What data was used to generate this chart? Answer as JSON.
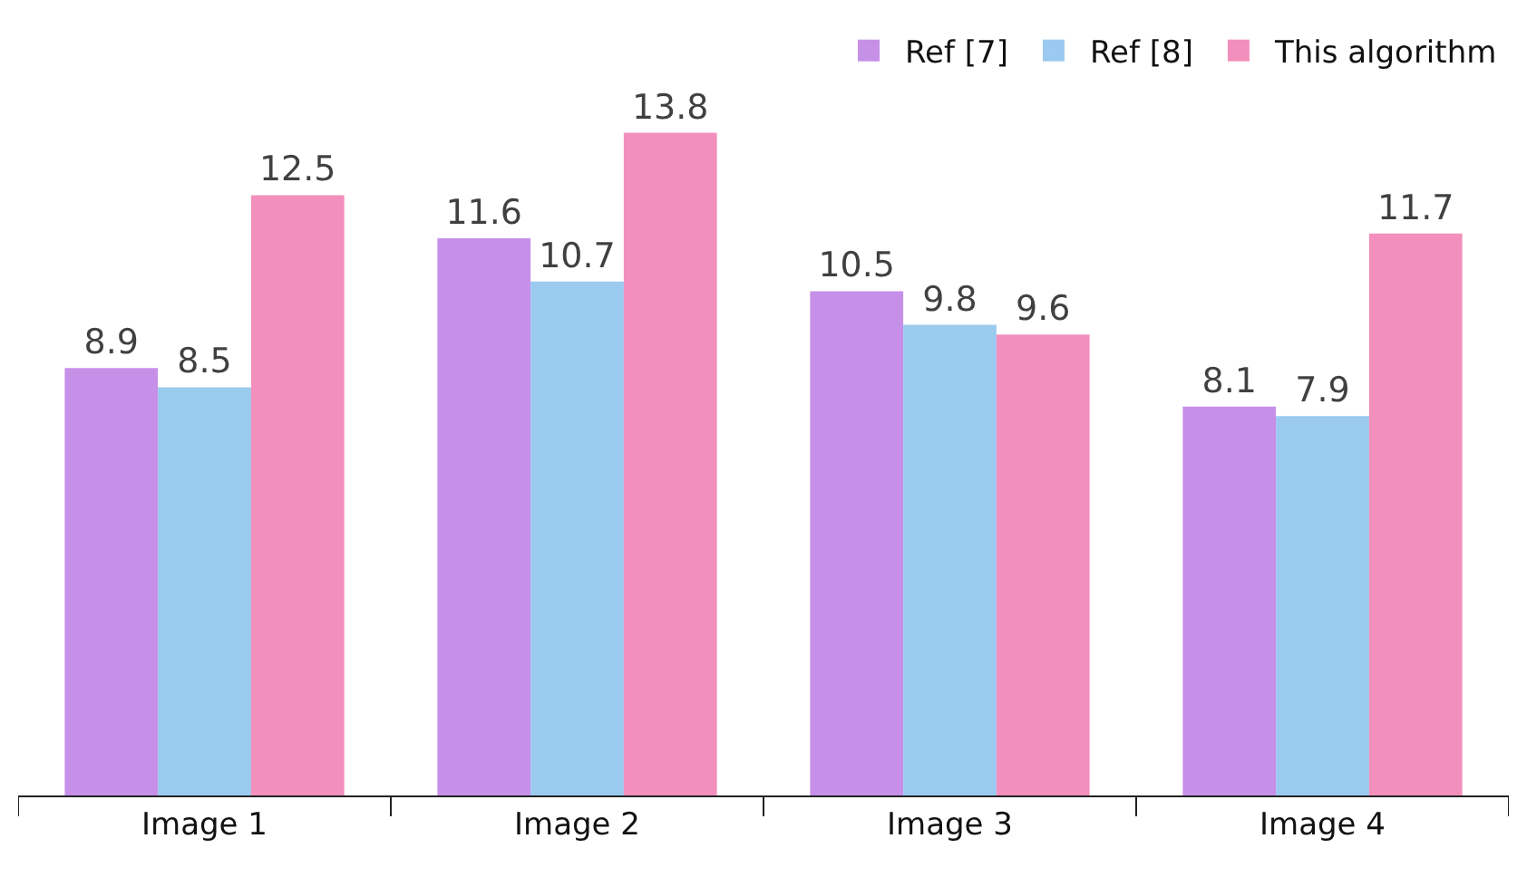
{
  "chart_data": {
    "type": "bar",
    "categories": [
      "Image 1",
      "Image 2",
      "Image 3",
      "Image 4"
    ],
    "series": [
      {
        "name": "Ref [7]",
        "color": "#b36be0",
        "values": [
          8.9,
          11.6,
          10.5,
          8.1
        ]
      },
      {
        "name": "Ref [8]",
        "color": "#7ab8ea",
        "values": [
          8.5,
          10.7,
          9.8,
          7.9
        ]
      },
      {
        "name": "This algorithm",
        "color": "#ee6aa7",
        "values": [
          12.5,
          13.8,
          9.6,
          11.7
        ]
      }
    ],
    "data_labels": true,
    "legend": "top right",
    "tick_labels": "x"
  }
}
